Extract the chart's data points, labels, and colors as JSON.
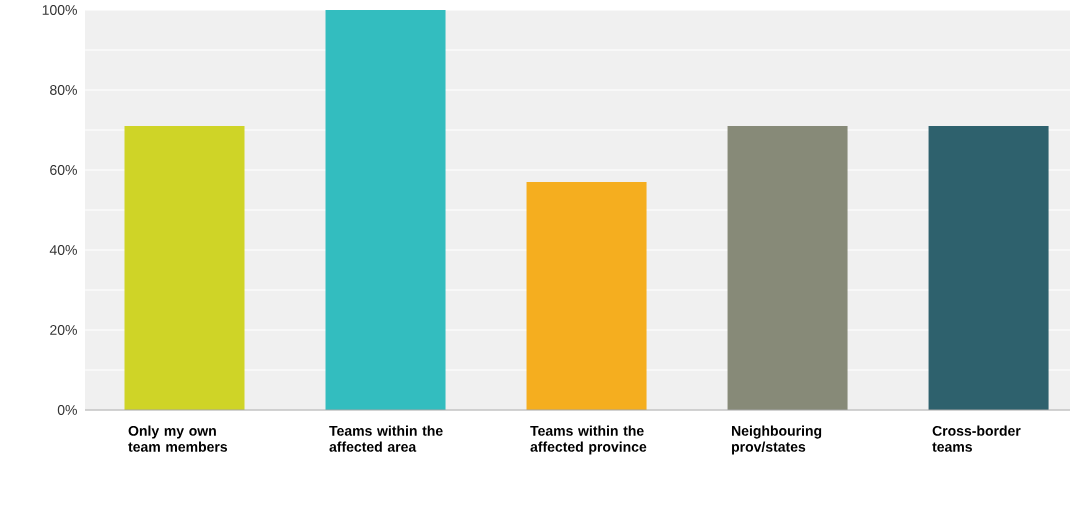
{
  "chart_data": {
    "type": "bar",
    "categories": [
      "Only my own team members",
      "Teams within the affected area",
      "Teams within the affected province",
      "Neighbouring prov/states",
      "Cross-border teams"
    ],
    "values": [
      71,
      100,
      57,
      71,
      71
    ],
    "colors": [
      "#cfd427",
      "#33bdbf",
      "#f5ae1f",
      "#878a78",
      "#2e616d"
    ],
    "ylim": [
      0,
      100
    ],
    "yticks": [
      {
        "value": 0,
        "label": "0%"
      },
      {
        "value": 10,
        "label": null
      },
      {
        "value": 20,
        "label": "20%"
      },
      {
        "value": 30,
        "label": null
      },
      {
        "value": 40,
        "label": "40%"
      },
      {
        "value": 50,
        "label": null
      },
      {
        "value": 60,
        "label": "60%"
      },
      {
        "value": 70,
        "label": null
      },
      {
        "value": 80,
        "label": "80%"
      },
      {
        "value": 90,
        "label": null
      },
      {
        "value": 100,
        "label": "100%"
      }
    ],
    "grid": "y"
  }
}
